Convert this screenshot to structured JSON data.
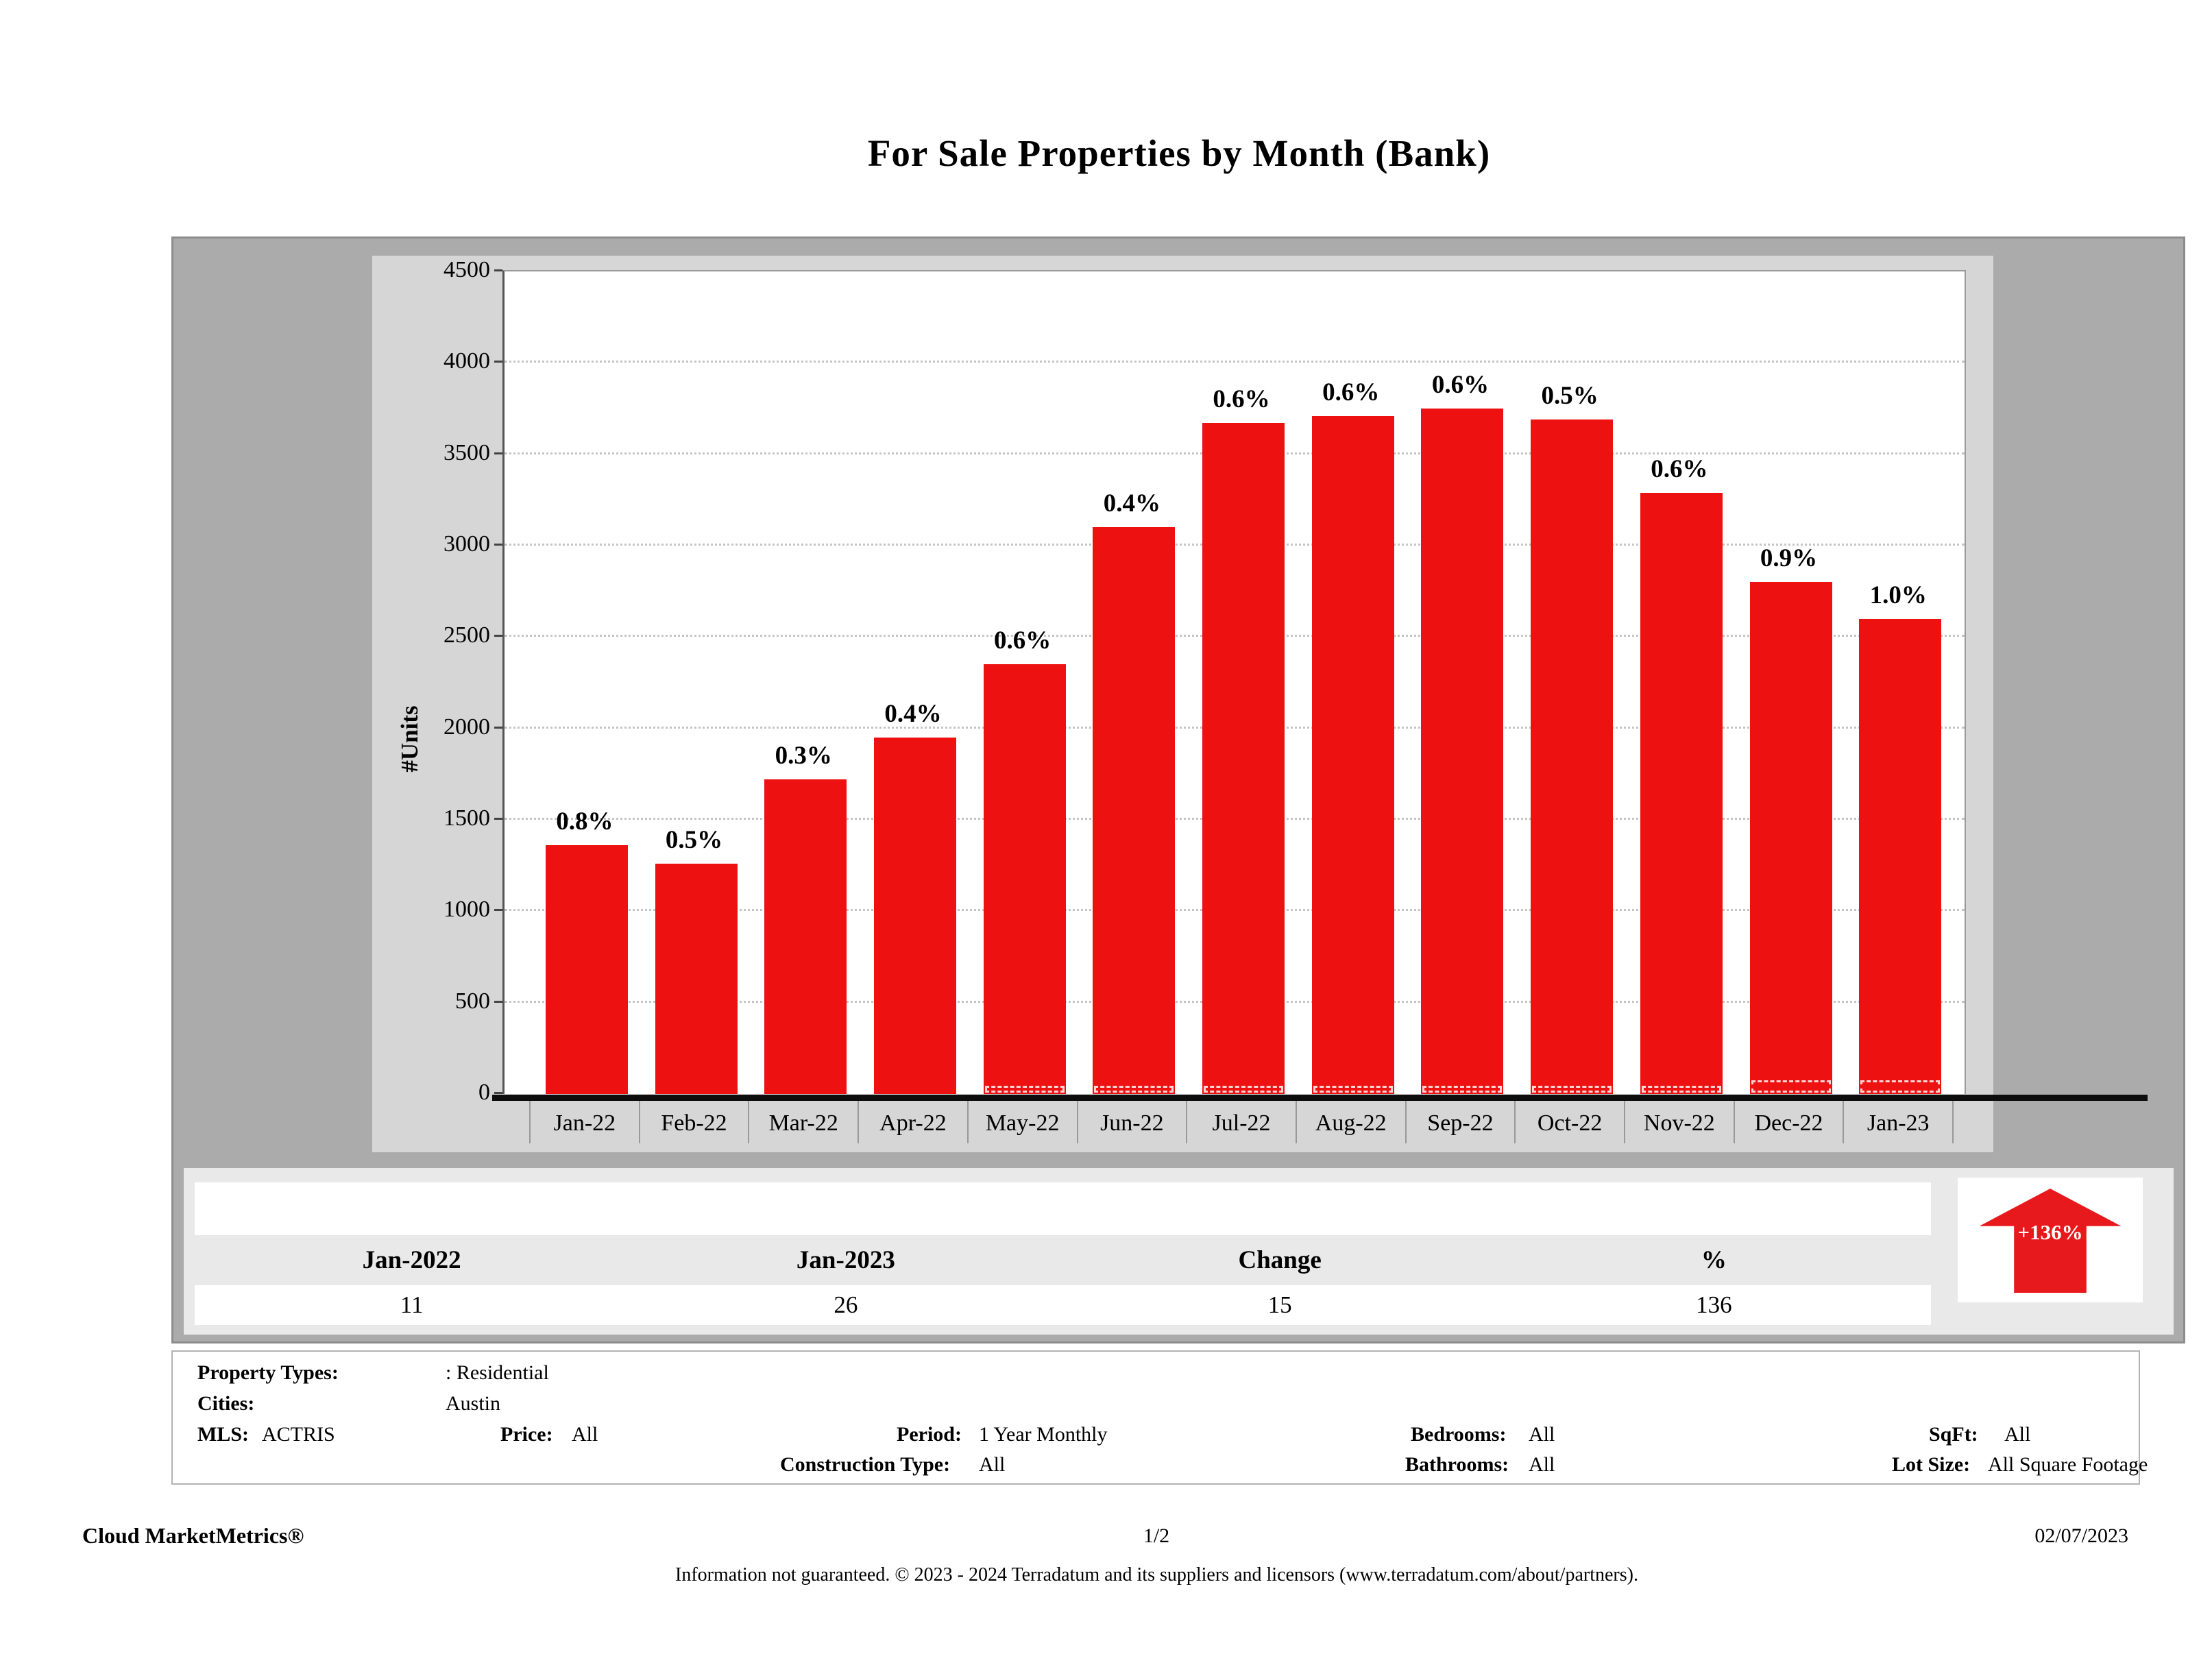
{
  "title": "For Sale Properties by Month (Bank)",
  "colors": {
    "bar_red": "#ee1111",
    "arrow_red": "#e8191c"
  },
  "chart_data": {
    "type": "bar",
    "title": "For Sale Properties by Month (Bank)",
    "ylabel": "#Units",
    "xlabel": "",
    "ylim": [
      0,
      4500
    ],
    "ytick_step": 500,
    "grid": "dotted-horizontal",
    "legend": "none",
    "categories": [
      "Jan-22",
      "Feb-22",
      "Mar-22",
      "Apr-22",
      "May-22",
      "Jun-22",
      "Jul-22",
      "Aug-22",
      "Sep-22",
      "Oct-22",
      "Nov-22",
      "Dec-22",
      "Jan-23"
    ],
    "values": [
      1360,
      1260,
      1720,
      1950,
      2350,
      3100,
      3670,
      3710,
      3750,
      3690,
      3290,
      2800,
      2600
    ],
    "bar_labels": [
      "0.8%",
      "0.5%",
      "0.3%",
      "0.4%",
      "0.6%",
      "0.4%",
      "0.6%",
      "0.6%",
      "0.6%",
      "0.5%",
      "0.6%",
      "0.9%",
      "1.0%"
    ],
    "secondary_series": {
      "name": "Bank owned (tiny dashed markers at bar bases)",
      "known_values": {
        "Jan-22": 11,
        "Jan-23": 26
      },
      "marker_size_class": [
        0,
        0,
        0,
        0,
        1,
        1,
        1,
        1,
        1,
        1,
        1,
        2,
        2
      ]
    }
  },
  "summary_table": {
    "headers": [
      "Jan-2022",
      "Jan-2023",
      "Change",
      "%"
    ],
    "values": [
      "11",
      "26",
      "15",
      "136"
    ]
  },
  "trend_badge": {
    "label": "+136%",
    "direction": "up"
  },
  "filters": {
    "property_types_label": "Property Types:",
    "property_types_value": ": Residential",
    "cities_label": "Cities:",
    "cities_value": "Austin",
    "mls_label": "MLS:",
    "mls_value": "ACTRIS",
    "price_label": "Price:",
    "price_value": "All",
    "period_label": "Period:",
    "period_value": "1 Year Monthly",
    "construction_label": "Construction Type:",
    "construction_value": "All",
    "bedrooms_label": "Bedrooms:",
    "bedrooms_value": "All",
    "bathrooms_label": "Bathrooms:",
    "bathrooms_value": "All",
    "sqft_label": "SqFt:",
    "sqft_value": "All",
    "lot_label": "Lot Size:",
    "lot_value": "All Square Footage"
  },
  "footer": {
    "brand": "Cloud MarketMetrics®",
    "page": "1/2",
    "date": "02/07/2023",
    "disclaimer": "Information not guaranteed. © 2023 - 2024 Terradatum and its suppliers and licensors (www.terradatum.com/about/partners)."
  }
}
